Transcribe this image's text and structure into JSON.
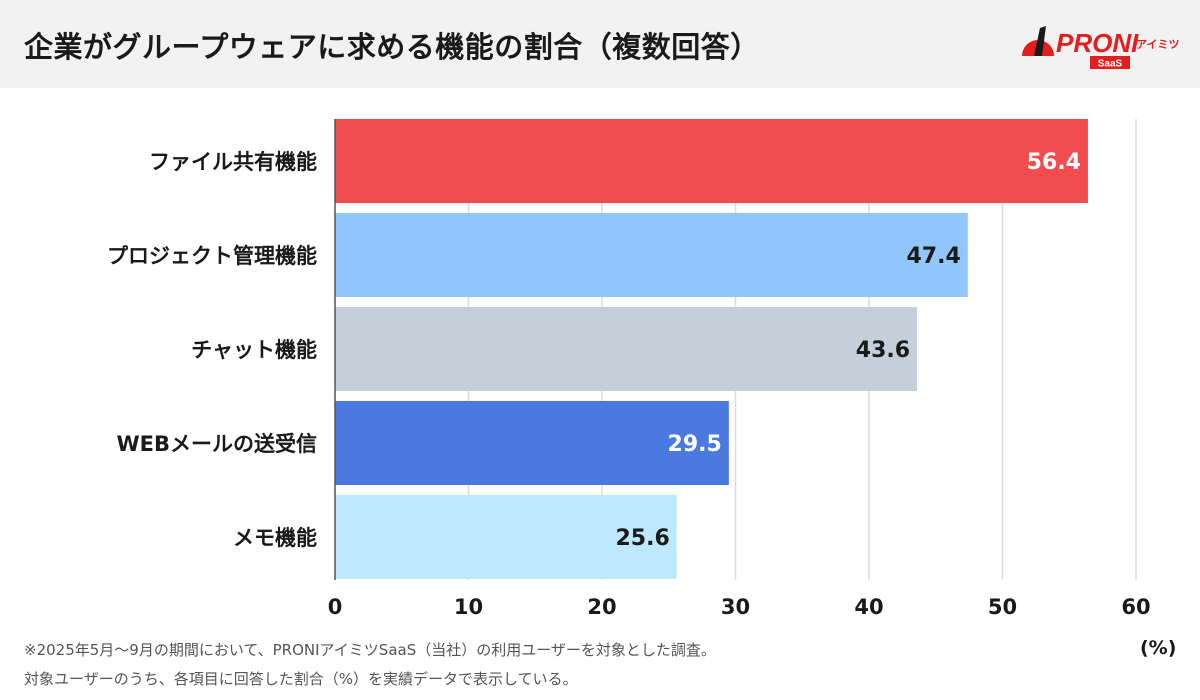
{
  "title": "企業がグループウェアに求める機能の割合（複数回答）",
  "logo": {
    "text": "PRONI",
    "sub": "アイミツ",
    "badge": "SaaS",
    "color": "#e31e1e"
  },
  "chart_data": {
    "type": "bar",
    "orientation": "horizontal",
    "categories": [
      "ファイル共有機能",
      "プロジェクト管理機能",
      "チャット機能",
      "WEBメールの送受信",
      "メモ機能"
    ],
    "values": [
      56.4,
      47.4,
      43.6,
      29.5,
      25.6
    ],
    "colors": [
      "#f24c4f",
      "#90c6fb",
      "#c5cfda",
      "#4a79e0",
      "#bde8fd"
    ],
    "label_colors": [
      "#ffffff",
      "#1a1a1a",
      "#1a1a1a",
      "#ffffff",
      "#1a1a1a"
    ],
    "xlim": [
      0,
      60
    ],
    "xticks": [
      0,
      10,
      20,
      30,
      40,
      50,
      60
    ],
    "xunit": "(%)",
    "grid": true
  },
  "footnotes": [
    "※2025年5月〜9月の期間において、PRONIアイミツSaaS（当社）の利用ユーザーを対象とした調査。",
    "対象ユーザーのうち、各項目に回答した割合（%）を実績データで表示している。"
  ]
}
